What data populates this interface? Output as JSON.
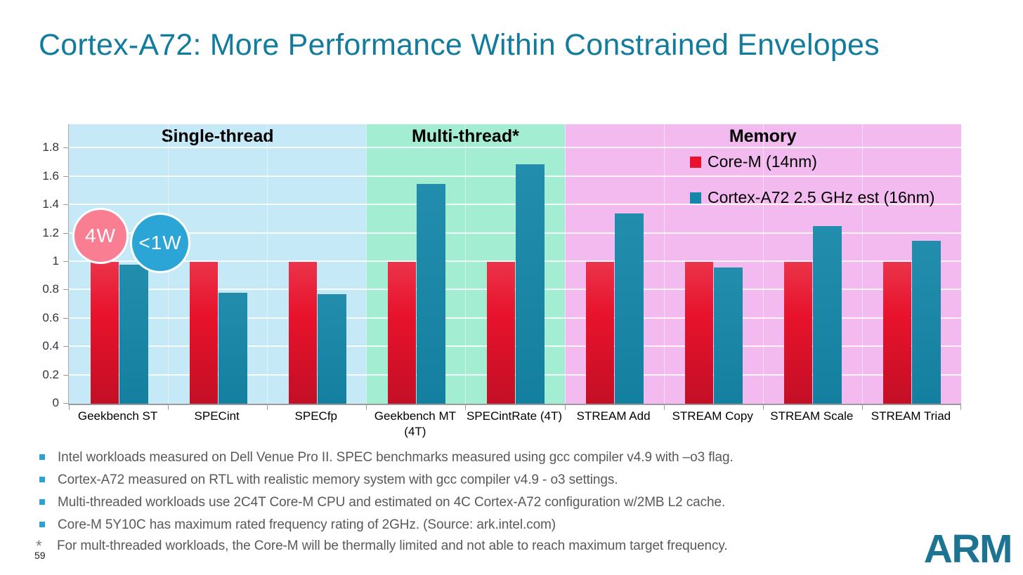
{
  "slide": {
    "title": "Cortex-A72: More Performance Within Constrained Envelopes",
    "page_number": "59",
    "logo_text": "ARM",
    "colors": {
      "title_teal": "#137c9e",
      "logo_teal": "#1d7492",
      "axis_gray": "#9a9a9a",
      "footnote_gray": "#595959"
    }
  },
  "chart_data": {
    "type": "bar",
    "categories": [
      "Geekbench ST",
      "SPECint",
      "SPECfp",
      "Geekbench MT (4T)",
      "SPECintRate (4T)",
      "STREAM Add",
      "STREAM Copy",
      "STREAM Scale",
      "STREAM Triad"
    ],
    "series": [
      {
        "name": "Core-M (14nm)",
        "color": "#e8122c",
        "values": [
          1.0,
          1.0,
          1.0,
          1.0,
          1.0,
          1.0,
          1.0,
          1.0,
          1.0
        ]
      },
      {
        "name": "Cortex-A72 2.5 GHz est (16nm)",
        "color": "#1586a8",
        "values": [
          0.98,
          0.78,
          0.77,
          1.55,
          1.69,
          1.34,
          0.96,
          1.25,
          1.15
        ]
      }
    ],
    "sections": [
      {
        "label": "Single-thread",
        "categories_count": 3,
        "bg": "#c6e9f8"
      },
      {
        "label": "Multi-thread*",
        "categories_count": 2,
        "bg": "#a3edd3"
      },
      {
        "label": "Memory",
        "categories_count": 4,
        "bg": "#f3baf0"
      }
    ],
    "ytick_labels": [
      "0",
      "0.2",
      "0.4",
      "0.6",
      "0.8",
      "1",
      "1.2",
      "1.4",
      "1.6",
      "1.8"
    ],
    "ytick_values": [
      0,
      0.2,
      0.4,
      0.6,
      0.8,
      1.0,
      1.2,
      1.4,
      1.6,
      1.8
    ],
    "ylim": [
      0,
      1.97
    ],
    "grid": "horizontal-white",
    "legend_position": "inside-top-of-memory-section",
    "annotations": [
      {
        "label": "4W",
        "color": "#f97e92",
        "series": "Core-M (14nm)"
      },
      {
        "label": "<1W",
        "color": "#2aa5d6",
        "series": "Cortex-A72 2.5 GHz est (16nm)"
      }
    ]
  },
  "footnotes": {
    "bullet_color": "#2aa3d4",
    "bullets": [
      "Intel workloads measured on Dell Venue Pro II.  SPEC benchmarks measured using gcc compiler v4.9 with –o3 flag.",
      "Cortex-A72 measured on RTL with realistic memory system with gcc compiler v4.9 - o3 settings.",
      "Multi-threaded workloads use 2C4T Core-M CPU and estimated on 4C Cortex-A72 configuration w/2MB L2 cache.",
      "Core-M 5Y10C  has maximum  rated frequency rating of 2GHz. (Source: ark.intel.com)"
    ],
    "starred": {
      "marker": "*",
      "text": "For mult-threaded workloads, the Core-M will be thermally limited  and not able to reach maximum target  frequency."
    }
  }
}
